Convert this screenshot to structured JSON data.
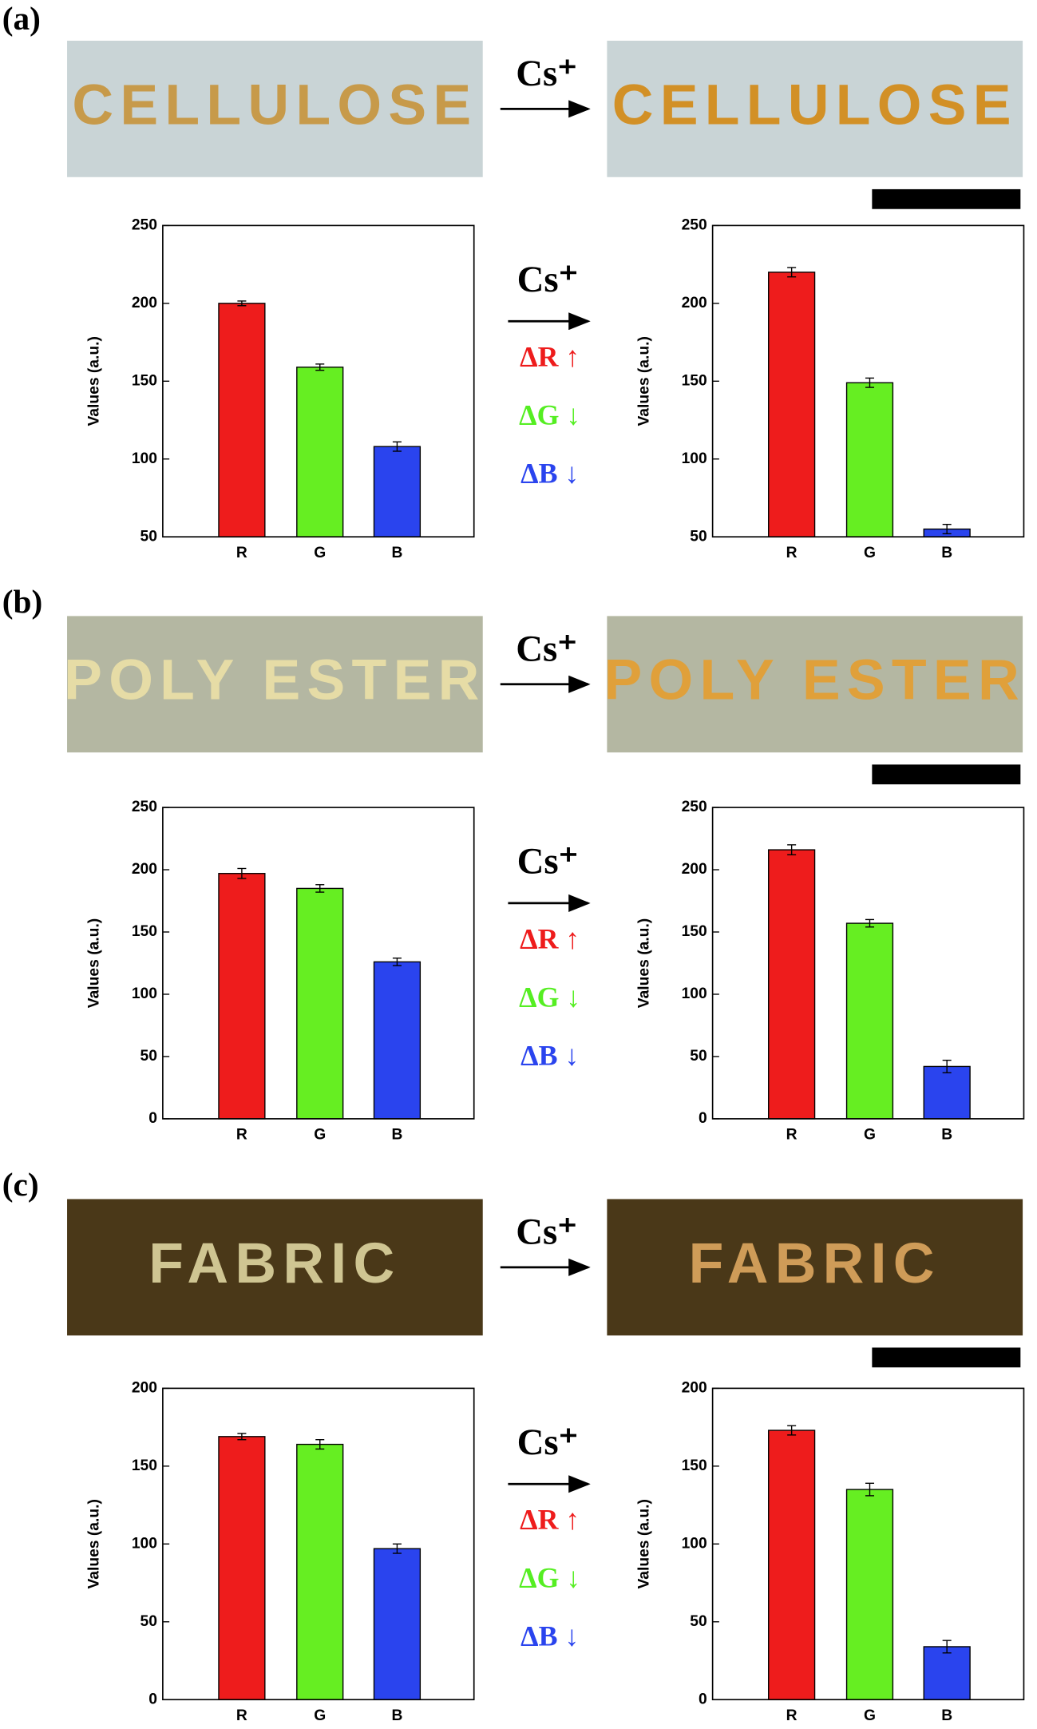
{
  "panels": [
    {
      "label": "(a)",
      "word": "CELLULOSE",
      "reagent": "Cs⁺",
      "changes": [
        "ΔR ↑",
        "ΔG ↓",
        "ΔB ↓"
      ]
    },
    {
      "label": "(b)",
      "word": "POLY ESTER",
      "reagent": "Cs⁺",
      "changes": [
        "ΔR ↑",
        "ΔG ↓",
        "ΔB ↓"
      ]
    },
    {
      "label": "(c)",
      "word": "FABRIC",
      "reagent": "Cs⁺",
      "changes": [
        "ΔR ↑",
        "ΔG ↓",
        "ΔB ↓"
      ]
    }
  ],
  "chart_data": [
    {
      "type": "bar",
      "ylabel": "Values (a.u.)",
      "categories": [
        "R",
        "G",
        "B"
      ],
      "values": [
        200,
        159,
        108
      ],
      "errors": [
        1.5,
        2,
        3
      ],
      "colors": [
        "#ee1c1c",
        "#66ee22",
        "#2a44ee"
      ],
      "ylim": [
        50,
        250
      ],
      "yticks": [
        50,
        100,
        150,
        200,
        250
      ]
    },
    {
      "type": "bar",
      "ylabel": "Values (a.u.)",
      "categories": [
        "R",
        "G",
        "B"
      ],
      "values": [
        220,
        149,
        55
      ],
      "errors": [
        3,
        3,
        3
      ],
      "colors": [
        "#ee1c1c",
        "#66ee22",
        "#2a44ee"
      ],
      "ylim": [
        50,
        250
      ],
      "yticks": [
        50,
        100,
        150,
        200,
        250
      ]
    },
    {
      "type": "bar",
      "ylabel": "Values (a.u.)",
      "categories": [
        "R",
        "G",
        "B"
      ],
      "values": [
        197,
        185,
        126
      ],
      "errors": [
        4,
        3,
        3
      ],
      "colors": [
        "#ee1c1c",
        "#66ee22",
        "#2a44ee"
      ],
      "ylim": [
        0,
        250
      ],
      "yticks": [
        0,
        50,
        100,
        150,
        200,
        250
      ]
    },
    {
      "type": "bar",
      "ylabel": "Values (a.u.)",
      "categories": [
        "R",
        "G",
        "B"
      ],
      "values": [
        216,
        157,
        42
      ],
      "errors": [
        4,
        3,
        5
      ],
      "colors": [
        "#ee1c1c",
        "#66ee22",
        "#2a44ee"
      ],
      "ylim": [
        0,
        250
      ],
      "yticks": [
        0,
        50,
        100,
        150,
        200,
        250
      ]
    },
    {
      "type": "bar",
      "ylabel": "Values (a.u.)",
      "categories": [
        "R",
        "G",
        "B"
      ],
      "values": [
        169,
        164,
        97
      ],
      "errors": [
        2,
        3,
        3
      ],
      "colors": [
        "#ee1c1c",
        "#66ee22",
        "#2a44ee"
      ],
      "ylim": [
        0,
        200
      ],
      "yticks": [
        0,
        50,
        100,
        150,
        200
      ]
    },
    {
      "type": "bar",
      "ylabel": "Values (a.u.)",
      "categories": [
        "R",
        "G",
        "B"
      ],
      "values": [
        173,
        135,
        34
      ],
      "errors": [
        3,
        4,
        4
      ],
      "colors": [
        "#ee1c1c",
        "#66ee22",
        "#2a44ee"
      ],
      "ylim": [
        0,
        200
      ],
      "yticks": [
        0,
        50,
        100,
        150,
        200
      ]
    }
  ]
}
